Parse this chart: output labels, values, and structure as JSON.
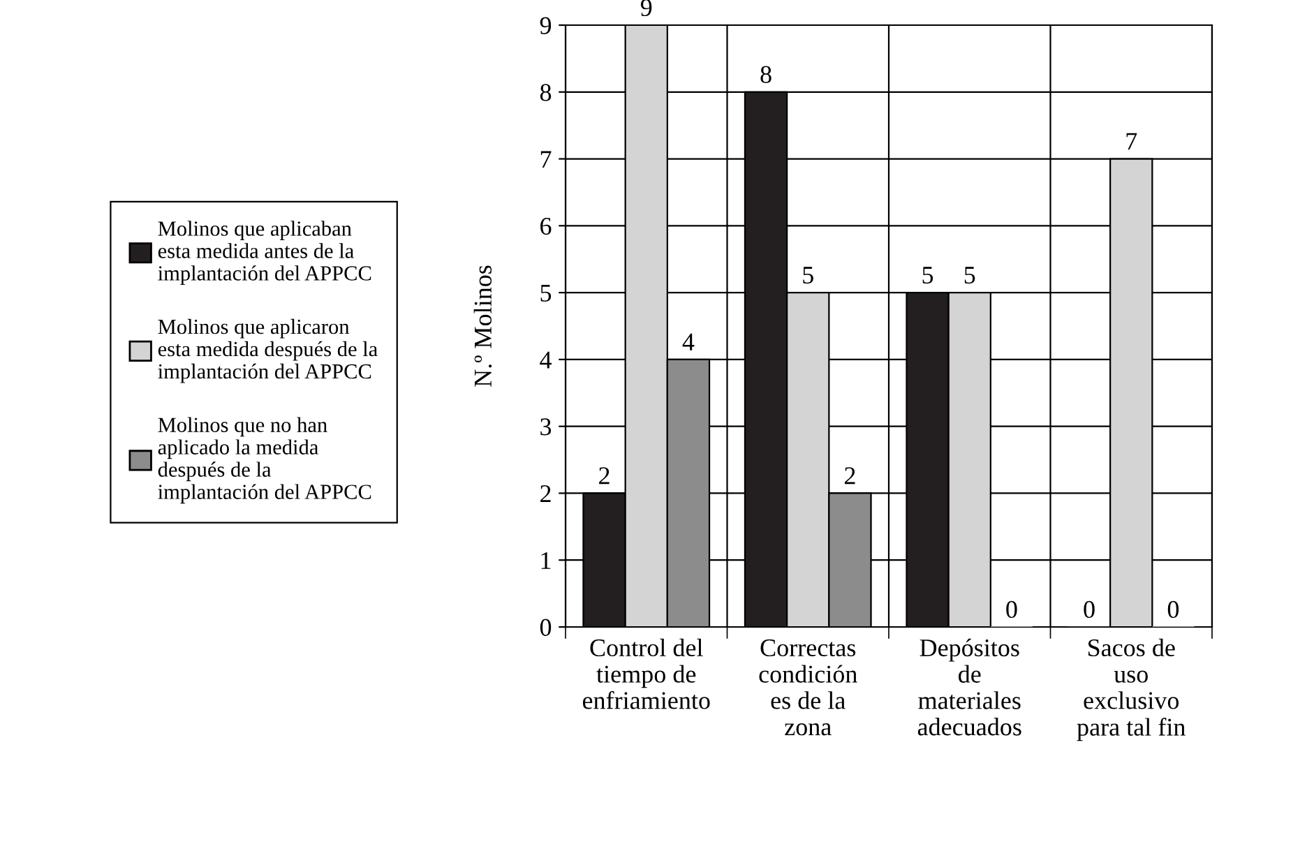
{
  "chart_data": {
    "type": "bar",
    "ylabel": "N.º Molinos",
    "categories": [
      "Control del\ntiempo de\nenfriamiento",
      "Correctas\ncondición\nes de la\nzona",
      "Depósitos\nde\nmateriales\nadecuados",
      "Sacos de\nuso\nexclusivo\npara tal fin"
    ],
    "series": [
      {
        "name": "Molinos que aplicaban\nesta medida antes de la\nimplantación del APPCC",
        "color": "#231f20",
        "values": [
          2,
          8,
          5,
          0
        ]
      },
      {
        "name": "Molinos que aplicaron\nesta medida después de la\nimplantación del APPCC",
        "color": "#d4d4d4",
        "values": [
          9,
          5,
          5,
          7
        ]
      },
      {
        "name": "Molinos que no han\naplicado la medida\ndespués de la\nimplantación del APPCC",
        "color": "#8c8c8c",
        "values": [
          4,
          2,
          0,
          0
        ]
      }
    ],
    "ylim": [
      0,
      9
    ],
    "yticks": [
      0,
      1,
      2,
      3,
      4,
      5,
      6,
      7,
      8,
      9
    ],
    "grid": true,
    "legend": "left",
    "data_labels": true
  }
}
